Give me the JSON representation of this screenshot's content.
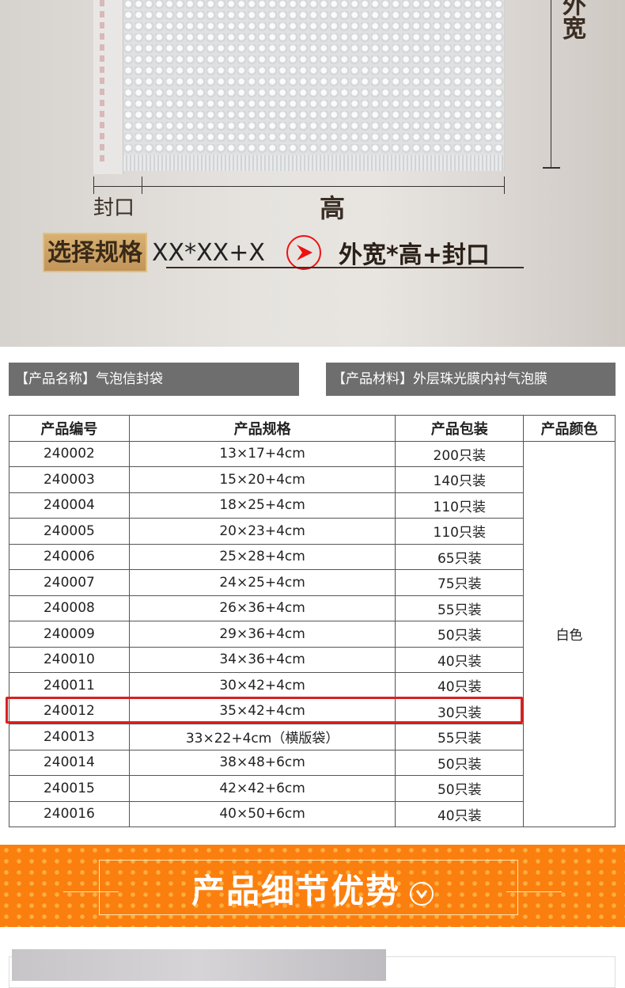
{
  "diagram": {
    "width_label": "外宽",
    "seal_label": "封口",
    "height_label": "高",
    "spec_badge": "选择规格",
    "spec_formula": "XX*XX+X",
    "spec_result": "外宽*高+封口"
  },
  "info": {
    "name": "【产品名称】气泡信封袋",
    "material": "【产品材料】外层珠光膜内衬气泡膜"
  },
  "table": {
    "headers": [
      "产品编号",
      "产品规格",
      "产品包装",
      "产品颜色"
    ],
    "color": "白色",
    "highlighted_id": "240012",
    "rows": [
      [
        "240002",
        "13×17+4cm",
        "200只装"
      ],
      [
        "240003",
        "15×20+4cm",
        "140只装"
      ],
      [
        "240004",
        "18×25+4cm",
        "110只装"
      ],
      [
        "240005",
        "20×23+4cm",
        "110只装"
      ],
      [
        "240006",
        "25×28+4cm",
        "65只装"
      ],
      [
        "240007",
        "24×25+4cm",
        "75只装"
      ],
      [
        "240008",
        "26×36+4cm",
        "55只装"
      ],
      [
        "240009",
        "29×36+4cm",
        "50只装"
      ],
      [
        "240010",
        "34×36+4cm",
        "40只装"
      ],
      [
        "240011",
        "30×42+4cm",
        "40只装"
      ],
      [
        "240012",
        "35×42+4cm",
        "30只装"
      ],
      [
        "240013",
        "33×22+4cm（横版袋）",
        "55只装"
      ],
      [
        "240014",
        "38×48+6cm",
        "50只装"
      ],
      [
        "240015",
        "42×42+6cm",
        "50只装"
      ],
      [
        "240016",
        "40×50+6cm",
        "40只装"
      ]
    ]
  },
  "banner": {
    "title": "产品细节优势",
    "icon": "chevron-down-circle-icon"
  },
  "colors": {
    "banner": "#fb7f0e",
    "highlight": "#d92020",
    "info_bar": "#6e6e6e",
    "spec_badge": "#c9a063"
  }
}
